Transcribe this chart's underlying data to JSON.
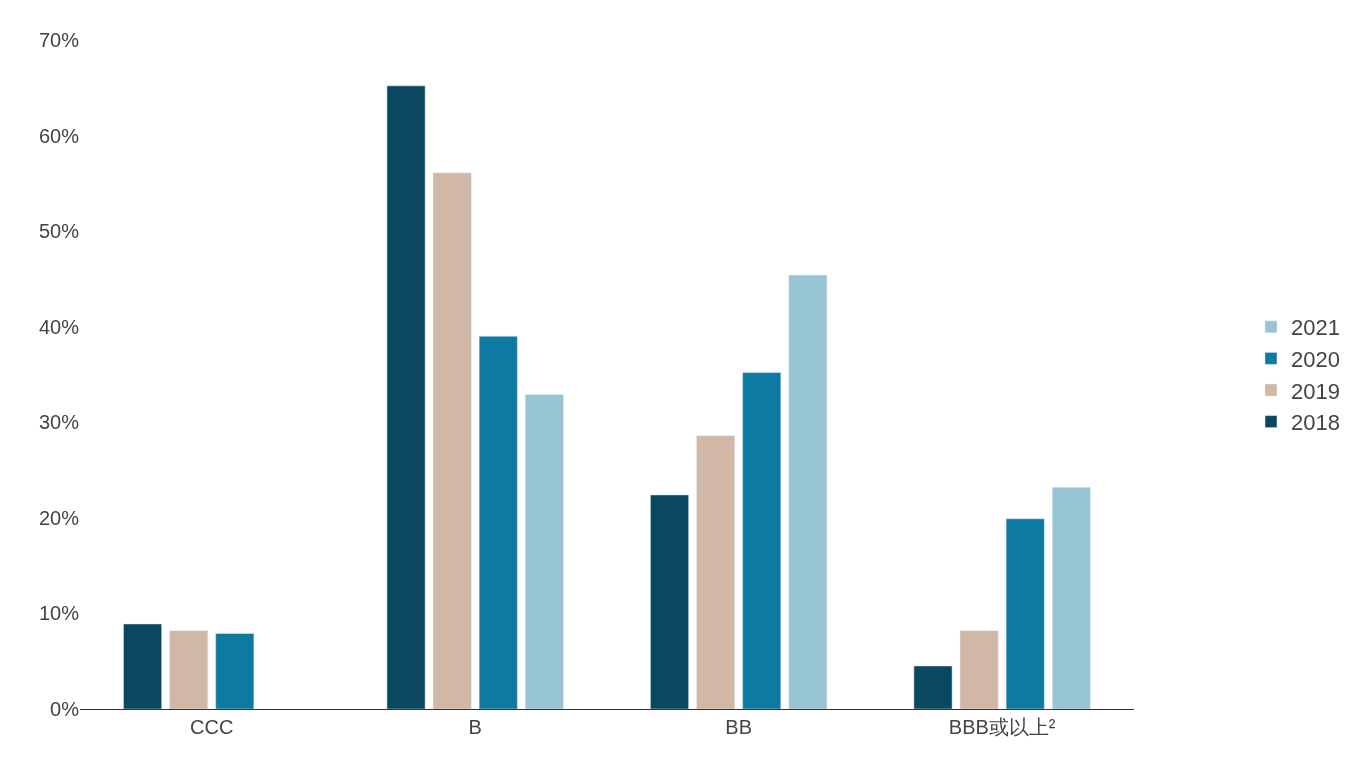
{
  "chart_data": {
    "type": "bar",
    "categories": [
      "CCC",
      "B",
      "BB",
      "BBB或以上²"
    ],
    "series": [
      {
        "name": "2018",
        "color": "#0a4760",
        "values": [
          8.9,
          65.2,
          22.4,
          4.5
        ]
      },
      {
        "name": "2019",
        "color": "#d1b7a5",
        "values": [
          8.2,
          56.1,
          28.6,
          8.2
        ]
      },
      {
        "name": "2020",
        "color": "#0d7aa1",
        "values": [
          7.9,
          39.0,
          35.2,
          19.9
        ]
      },
      {
        "name": "2021",
        "color": "#97c5d4",
        "values": [
          null,
          32.9,
          45.4,
          23.2
        ]
      }
    ],
    "ylim": [
      0,
      70
    ],
    "yticks": [
      {
        "value": 0,
        "label": "0%"
      },
      {
        "value": 10,
        "label": "10%"
      },
      {
        "value": 20,
        "label": "20%"
      },
      {
        "value": 30,
        "label": "30%"
      },
      {
        "value": 40,
        "label": "40%"
      },
      {
        "value": 50,
        "label": "50%"
      },
      {
        "value": 60,
        "label": "60%"
      },
      {
        "value": 70,
        "label": "70%"
      }
    ],
    "legend": "right"
  }
}
